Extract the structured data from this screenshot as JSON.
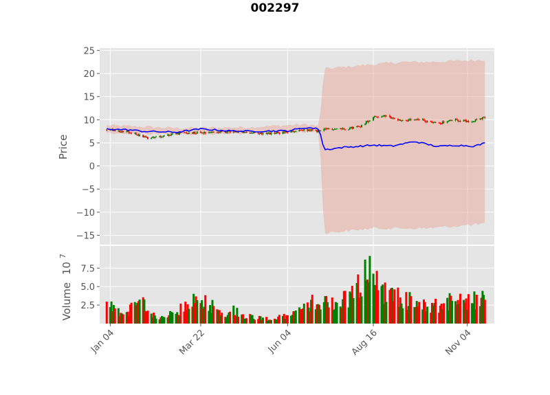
{
  "chart_data": {
    "type": "candlestick",
    "title": "002297",
    "price_panel": {
      "ylabel": "Price",
      "ylim": [
        -17,
        25.5
      ],
      "yticks": [
        "−15",
        "−10",
        "−5",
        "0",
        "5",
        "10",
        "15",
        "20",
        "25"
      ],
      "grid": true
    },
    "volume_panel": {
      "ylabel": "Volume",
      "multiplier_label": "10",
      "multiplier_exponent": "7",
      "ylim": [
        0,
        10.5
      ],
      "yticks": [
        "2.5",
        "5.0",
        "7.5"
      ],
      "grid": true
    },
    "x_ticks": [
      "Jan 04",
      "Mar 22",
      "Jun 04",
      "Aug 16",
      "Nov 04"
    ],
    "x_tick_dates": [
      "2021-01-04",
      "2021-03-22",
      "2021-06-04",
      "2021-08-16",
      "2021-11-04"
    ],
    "x_range": [
      "2020-12-26",
      "2021-11-27"
    ],
    "colors": {
      "up": "#008000",
      "down": "#ff0000",
      "band": "#e8a090",
      "forecast_line": "#0000ff",
      "panel_bg": "#e5e5e5",
      "grid": "#ffffff"
    },
    "series": [
      {
        "role": "close-price",
        "points": [
          [
            "2021-01-01",
            7.9
          ],
          [
            "2021-01-15",
            7.4
          ],
          [
            "2021-01-25",
            7.0
          ],
          [
            "2021-02-05",
            6.0
          ],
          [
            "2021-02-15",
            6.4
          ],
          [
            "2021-03-01",
            7.0
          ],
          [
            "2021-03-22",
            7.3
          ],
          [
            "2021-04-15",
            7.4
          ],
          [
            "2021-05-01",
            7.2
          ],
          [
            "2021-05-20",
            7.0
          ],
          [
            "2021-06-04",
            7.3
          ],
          [
            "2021-06-20",
            7.8
          ],
          [
            "2021-07-01",
            7.5
          ],
          [
            "2021-07-08",
            8.0
          ],
          [
            "2021-07-25",
            8.1
          ],
          [
            "2021-08-05",
            8.6
          ],
          [
            "2021-08-16",
            10.6
          ],
          [
            "2021-08-25",
            10.8
          ],
          [
            "2021-09-10",
            9.8
          ],
          [
            "2021-09-25",
            10.0
          ],
          [
            "2021-10-10",
            9.2
          ],
          [
            "2021-10-25",
            10.0
          ],
          [
            "2021-11-05",
            9.6
          ],
          [
            "2021-11-20",
            10.5
          ]
        ]
      },
      {
        "role": "forecast-line",
        "points": [
          [
            "2021-01-01",
            8.0
          ],
          [
            "2021-01-20",
            7.8
          ],
          [
            "2021-02-01",
            7.5
          ],
          [
            "2021-03-01",
            7.3
          ],
          [
            "2021-03-22",
            8.0
          ],
          [
            "2021-04-15",
            7.6
          ],
          [
            "2021-05-01",
            7.5
          ],
          [
            "2021-06-04",
            7.6
          ],
          [
            "2021-06-20",
            8.3
          ],
          [
            "2021-07-01",
            8.0
          ],
          [
            "2021-07-05",
            3.5
          ],
          [
            "2021-07-20",
            4.0
          ],
          [
            "2021-08-01",
            4.2
          ],
          [
            "2021-08-16",
            4.5
          ],
          [
            "2021-09-01",
            4.3
          ],
          [
            "2021-09-20",
            5.3
          ],
          [
            "2021-10-10",
            4.2
          ],
          [
            "2021-10-25",
            4.5
          ],
          [
            "2021-11-10",
            4.3
          ],
          [
            "2021-11-20",
            5.0
          ]
        ]
      },
      {
        "role": "band-upper",
        "points": [
          [
            "2021-01-01",
            8.8
          ],
          [
            "2021-03-01",
            8.2
          ],
          [
            "2021-05-01",
            8.4
          ],
          [
            "2021-06-20",
            9.0
          ],
          [
            "2021-07-01",
            8.6
          ],
          [
            "2021-07-05",
            21.0
          ],
          [
            "2021-08-16",
            22.0
          ],
          [
            "2021-09-10",
            22.5
          ],
          [
            "2021-10-01",
            22.5
          ],
          [
            "2021-11-20",
            23.0
          ]
        ]
      },
      {
        "role": "band-lower",
        "points": [
          [
            "2021-01-01",
            7.2
          ],
          [
            "2021-03-01",
            6.8
          ],
          [
            "2021-05-01",
            7.0
          ],
          [
            "2021-06-20",
            7.4
          ],
          [
            "2021-07-01",
            7.4
          ],
          [
            "2021-07-05",
            -14.5
          ],
          [
            "2021-08-16",
            -13.5
          ],
          [
            "2021-09-10",
            -13.5
          ],
          [
            "2021-10-01",
            -13.5
          ],
          [
            "2021-11-20",
            -12.5
          ]
        ]
      },
      {
        "role": "volume",
        "points": [
          [
            "2021-01-01",
            2.5
          ],
          [
            "2021-01-15",
            1.5
          ],
          [
            "2021-02-01",
            2.6
          ],
          [
            "2021-02-15",
            0.6
          ],
          [
            "2021-03-01",
            1.5
          ],
          [
            "2021-03-22",
            3.5
          ],
          [
            "2021-04-10",
            1.4
          ],
          [
            "2021-04-20",
            1.8
          ],
          [
            "2021-05-01",
            1.0
          ],
          [
            "2021-05-20",
            0.6
          ],
          [
            "2021-06-04",
            1.0
          ],
          [
            "2021-06-20",
            2.2
          ],
          [
            "2021-07-01",
            3.4
          ],
          [
            "2021-07-15",
            2.5
          ],
          [
            "2021-08-01",
            4.2
          ],
          [
            "2021-08-10",
            7.5
          ],
          [
            "2021-08-20",
            5.0
          ],
          [
            "2021-09-01",
            3.8
          ],
          [
            "2021-09-20",
            2.8
          ],
          [
            "2021-10-10",
            2.4
          ],
          [
            "2021-10-25",
            3.2
          ],
          [
            "2021-11-05",
            3.0
          ],
          [
            "2021-11-20",
            3.2
          ]
        ]
      }
    ]
  }
}
